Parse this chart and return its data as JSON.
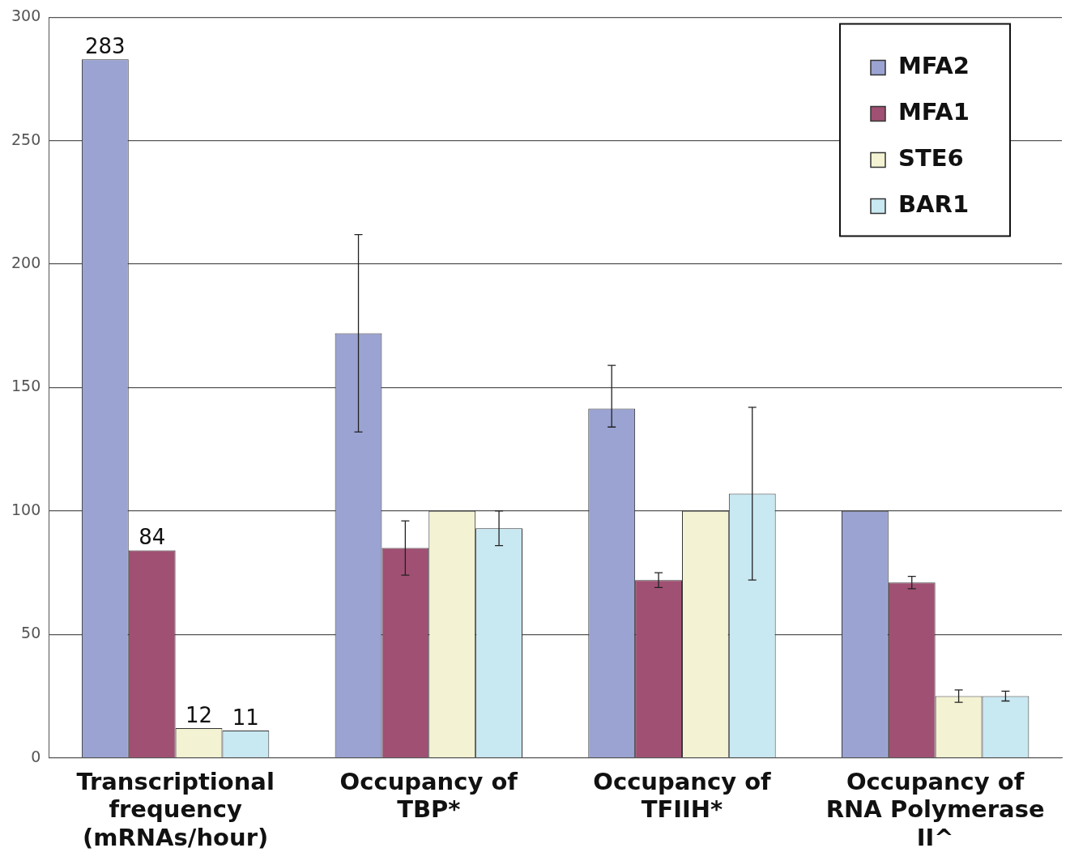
{
  "chart_data": {
    "type": "bar",
    "categories": [
      "Transcriptional frequency (mRNAs/hour)",
      "Occupancy of TBP*",
      "Occupancy of TFIIH*",
      "Occupancy of RNA Polymerase II^"
    ],
    "series": [
      {
        "name": "MFA2",
        "color": "#9aa3d2",
        "values": [
          283,
          172,
          141.5,
          100
        ],
        "errors": [
          null,
          40,
          [
            134,
            159
          ],
          null
        ],
        "value_labels": [
          "283",
          null,
          null,
          null
        ]
      },
      {
        "name": "MFA1",
        "color": "#a05073",
        "values": [
          84,
          85,
          72,
          71
        ],
        "errors": [
          null,
          11,
          3,
          2.5
        ],
        "value_labels": [
          "84",
          null,
          null,
          null
        ]
      },
      {
        "name": "STE6",
        "color": "#f3f2d2",
        "values": [
          12,
          100,
          100,
          25
        ],
        "errors": [
          null,
          null,
          null,
          2.5
        ],
        "value_labels": [
          "12",
          null,
          null,
          null
        ]
      },
      {
        "name": "BAR1",
        "color": "#c8e8f2",
        "values": [
          11,
          93,
          107,
          25
        ],
        "errors": [
          null,
          7,
          35,
          2
        ],
        "value_labels": [
          "11",
          null,
          null,
          null
        ]
      }
    ],
    "ylim": [
      0,
      300
    ],
    "yticks": [
      0,
      50,
      100,
      150,
      200,
      250,
      300
    ],
    "grid": "y",
    "legend": "top right"
  }
}
